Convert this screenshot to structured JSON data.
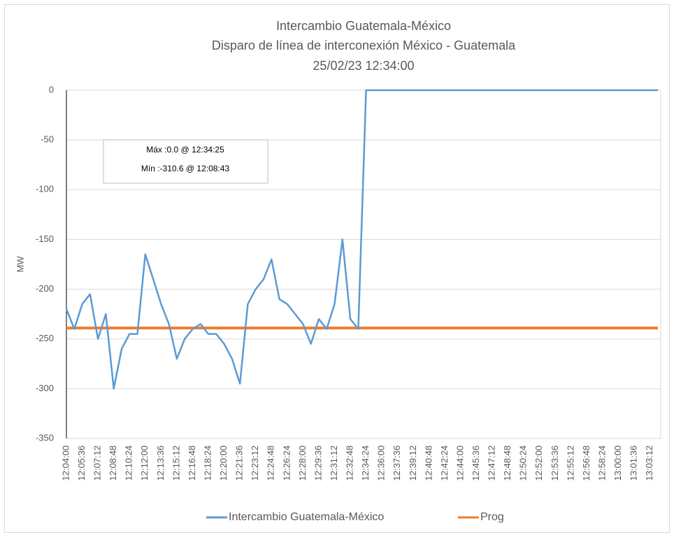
{
  "chart_data": {
    "type": "line",
    "title": "Intercambio Guatemala-México",
    "subtitle": "Disparo de línea de interconexión México - Guatemala",
    "date": "25/02/23 12:34:00",
    "y_label": "MW",
    "annotations": [
      "Máx :0.0 @ 12:34:25",
      "Mín :-310.6 @ 12:08:43"
    ],
    "categories": [
      "12:04:00",
      null,
      "12:05:36",
      null,
      "12:07:12",
      null,
      "12:08:48",
      null,
      "12:10:24",
      null,
      "12:12:00",
      null,
      "12:13:36",
      null,
      "12:15:12",
      null,
      "12:16:48",
      null,
      "12:18:24",
      null,
      "12:20:00",
      null,
      "12:21:36",
      null,
      "12:23:12",
      null,
      "12:24:48",
      null,
      "12:26:24",
      null,
      "12:28:00",
      null,
      "12:29:36",
      null,
      "12:31:12",
      null,
      "12:32:48",
      null,
      "12:34:24",
      null,
      "12:36:00",
      null,
      "12:37:36",
      null,
      "12:39:12",
      null,
      "12:40:48",
      null,
      "12:42:24",
      null,
      "12:44:00",
      null,
      "12:45:36",
      null,
      "12:47:12",
      null,
      "12:48:48",
      null,
      "12:50:24",
      null,
      "12:52:00",
      null,
      "12:53:36",
      null,
      "12:55:12",
      null,
      "12:56:48",
      null,
      "12:58:24",
      null,
      "13:00:00",
      null,
      "13:01:36",
      null,
      "13:03:12",
      null
    ],
    "series": [
      {
        "name": "Intercambio Guatemala-México",
        "color": "#5b9bd5",
        "values": [
          -220,
          -240,
          -215,
          -205,
          -250,
          -225,
          -300,
          -260,
          -245,
          -245,
          -165,
          -190,
          -215,
          -235,
          -270,
          -250,
          -240,
          -235,
          -245,
          -245,
          -255,
          -270,
          -295,
          -215,
          -200,
          -190,
          -170,
          -210,
          -215,
          -225,
          -235,
          -255,
          -230,
          -240,
          -215,
          -150,
          -230,
          -240,
          0,
          0,
          0,
          0,
          0,
          0,
          0,
          0,
          0,
          0,
          0,
          0,
          0,
          0,
          0,
          0,
          0,
          0,
          0,
          0,
          0,
          0,
          0,
          0,
          0,
          0,
          0,
          0,
          0,
          0,
          0,
          0,
          0,
          0,
          0,
          0,
          0,
          0
        ]
      },
      {
        "name": "Prog",
        "color": "#ed7d31",
        "values": [
          -239,
          -239,
          -239,
          -239,
          -239,
          -239,
          -239,
          -239,
          -239,
          -239,
          -239,
          -239,
          -239,
          -239,
          -239,
          -239,
          -239,
          -239,
          -239,
          -239,
          -239,
          -239,
          -239,
          -239,
          -239,
          -239,
          -239,
          -239,
          -239,
          -239,
          -239,
          -239,
          -239,
          -239,
          -239,
          -239,
          -239,
          -239,
          -239,
          -239,
          -239,
          -239,
          -239,
          -239,
          -239,
          -239,
          -239,
          -239,
          -239,
          -239,
          -239,
          -239,
          -239,
          -239,
          -239,
          -239,
          -239,
          -239,
          -239,
          -239,
          -239,
          -239,
          -239,
          -239,
          -239,
          -239,
          -239,
          -239,
          -239,
          -239,
          -239,
          -239,
          -239,
          -239,
          -239,
          -239
        ]
      }
    ],
    "ylim": [
      -350,
      0
    ],
    "yticks": [
      0,
      -50,
      -100,
      -150,
      -200,
      -250,
      -300,
      -350
    ],
    "grid": true,
    "legend": "bottom"
  }
}
